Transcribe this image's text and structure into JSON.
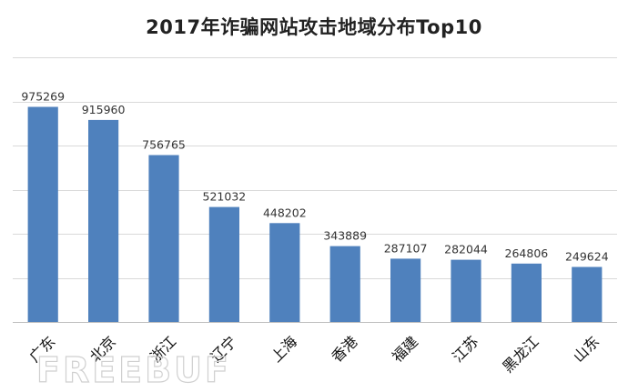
{
  "chart_data": {
    "type": "bar",
    "title": "2017年诈骗网站攻击地域分布Top10",
    "xlabel": "",
    "ylabel": "",
    "categories": [
      "广东",
      "北京",
      "浙江",
      "辽宁",
      "上海",
      "香港",
      "福建",
      "江苏",
      "黑龙江",
      "山东"
    ],
    "values": [
      975269,
      915960,
      756765,
      521032,
      448202,
      343889,
      287107,
      282044,
      264806,
      249624
    ],
    "ylim": [
      0,
      1200000
    ],
    "ytick_step": 200000,
    "grid": true,
    "legend": "none",
    "bar_color": "#4f81bd"
  },
  "watermark": {
    "text": "FREEBUF"
  }
}
